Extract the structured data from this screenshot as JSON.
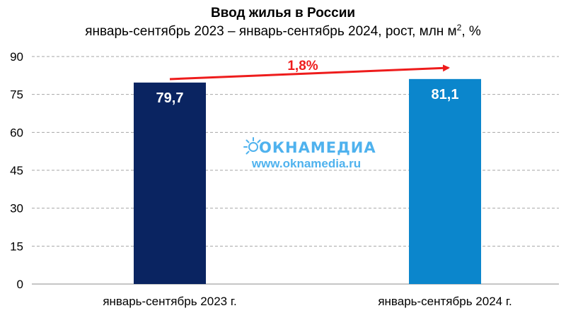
{
  "chart_data": {
    "type": "bar",
    "title": "Ввод жилья в России",
    "subtitle_main": "январь-сентябрь 2023 – январь-сентябрь 2024, рост, млн м",
    "subtitle_sup": "2",
    "subtitle_tail": ", %",
    "categories": [
      "январь-сентябрь 2023 г.",
      "январь-сентябрь 2024 г."
    ],
    "values": [
      79.7,
      81.1
    ],
    "value_labels": [
      "79,7",
      "81,1"
    ],
    "bar_colors": [
      "#0a2461",
      "#0b86cc"
    ],
    "ylim": [
      0,
      90
    ],
    "yticks": [
      0,
      15,
      30,
      45,
      60,
      75,
      90
    ],
    "grid": true,
    "growth_label": "1,8%",
    "growth_color": "#ee1c1c"
  },
  "watermark": {
    "brand": "ОКНАМЕДИА",
    "url": "www.oknamedia.ru",
    "color": "#4fb2ee"
  }
}
